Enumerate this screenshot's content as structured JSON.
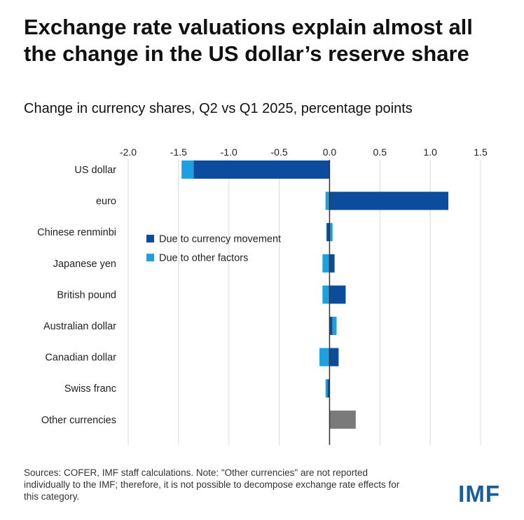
{
  "header": {
    "title": "Exchange rate valuations explain almost all the change in the US dollar’s reserve share",
    "subtitle": "Change in currency shares, Q2 vs Q1 2025, percentage points"
  },
  "footer": {
    "note": "Sources: COFER, IMF staff calculations. Note: \"Other currencies\" are not reported individually to the IMF; therefore, it is not possible to decompose exchange rate effects for this category.",
    "logo": "IMF"
  },
  "colors": {
    "currency_movement": "#0b4d9c",
    "other_factors": "#1ba1e2",
    "other_currencies": "#7a7a7a",
    "grid": "#d9d9d9",
    "axis": "#333333"
  },
  "chart_data": {
    "type": "bar",
    "orientation": "horizontal",
    "stacked": true,
    "categories": [
      "US dollar",
      "euro",
      "Chinese renminbi",
      "Japanese yen",
      "British pound",
      "Australian dollar",
      "Canadian dollar",
      "Swiss franc",
      "Other currencies"
    ],
    "series": [
      {
        "name": "Due to currency movement",
        "values": [
          -1.35,
          1.18,
          -0.03,
          0.05,
          0.16,
          0.03,
          0.09,
          -0.02,
          null
        ]
      },
      {
        "name": "Due to other factors",
        "values": [
          -0.12,
          -0.04,
          0.03,
          -0.07,
          -0.07,
          0.04,
          -0.1,
          -0.02,
          null
        ]
      }
    ],
    "unsplit": [
      null,
      null,
      null,
      null,
      null,
      null,
      null,
      null,
      0.26
    ],
    "xticks": [
      -2.0,
      -1.5,
      -1.0,
      -0.5,
      0.0,
      0.5,
      1.0,
      1.5
    ],
    "xtick_labels": [
      "-2.0",
      "-1.5",
      "-1.0",
      "-0.5",
      "0.0",
      "0.5",
      "1.0",
      "1.5"
    ],
    "xlim": [
      -2.0,
      1.5
    ],
    "grid": true,
    "legend_position": "upper-middle",
    "xlabel": "",
    "ylabel": ""
  }
}
